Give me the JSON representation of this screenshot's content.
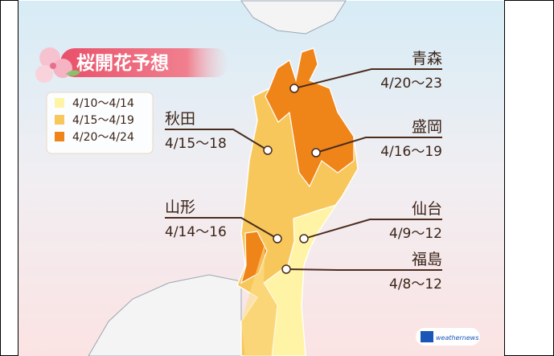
{
  "title": "桜開花予想",
  "legend": [
    {
      "label": "4/10〜4/14",
      "color": "#fff4a6"
    },
    {
      "label": "4/15〜4/19",
      "color": "#f7c75c"
    },
    {
      "label": "4/20〜4/24",
      "color": "#ef8419"
    }
  ],
  "cities": [
    {
      "name": "青森",
      "dates": "4/20〜23"
    },
    {
      "name": "盛岡",
      "dates": "4/16〜19"
    },
    {
      "name": "秋田",
      "dates": "4/15〜18"
    },
    {
      "name": "山形",
      "dates": "4/14〜16"
    },
    {
      "name": "仙台",
      "dates": "4/9〜12"
    },
    {
      "name": "福島",
      "dates": "4/8〜12"
    }
  ],
  "logo": "weathernews"
}
